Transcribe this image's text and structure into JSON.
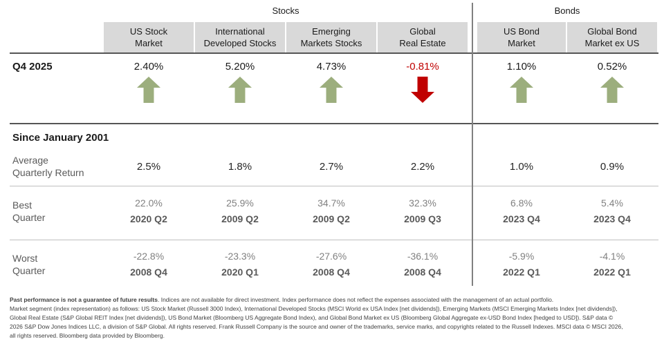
{
  "chart_data": {
    "type": "table",
    "title": "Quarterly and historical market returns",
    "column_groups": [
      {
        "label": "Stocks",
        "columns": 4
      },
      {
        "label": "Bonds",
        "columns": 2
      }
    ],
    "columns": [
      "US Stock Market",
      "International Developed Stocks",
      "Emerging Markets Stocks",
      "Global Real Estate",
      "US Bond Market",
      "Global Bond Market ex US"
    ],
    "rows": [
      {
        "label": "Q4 2025",
        "values_pct": [
          2.4,
          5.2,
          4.73,
          -0.81,
          1.1,
          0.52
        ],
        "directions": [
          "up",
          "up",
          "up",
          "down",
          "up",
          "up"
        ]
      },
      {
        "section": "Since January 2001"
      },
      {
        "label": "Average Quarterly Return",
        "values_pct": [
          2.5,
          1.8,
          2.7,
          2.2,
          1.0,
          0.9
        ]
      },
      {
        "label": "Best Quarter",
        "values_pct": [
          22.0,
          25.9,
          34.7,
          32.3,
          6.8,
          5.4
        ],
        "quarters": [
          "2020 Q2",
          "2009 Q2",
          "2009 Q2",
          "2009 Q3",
          "2023 Q4",
          "2023 Q4"
        ]
      },
      {
        "label": "Worst Quarter",
        "values_pct": [
          -22.8,
          -23.3,
          -27.6,
          -36.1,
          -5.9,
          -4.1
        ],
        "quarters": [
          "2008 Q4",
          "2020 Q1",
          "2008 Q4",
          "2008 Q4",
          "2022 Q1",
          "2022 Q1"
        ]
      }
    ]
  },
  "groups": {
    "stocks": "Stocks",
    "bonds": "Bonds"
  },
  "cols": [
    {
      "header_1": "US Stock",
      "header_2": "Market",
      "q4": "2.40%",
      "q4_dir": "up",
      "avg": "2.5%",
      "best_pct": "22.0%",
      "best_q": "2020 Q2",
      "worst_pct": "-22.8%",
      "worst_q": "2008 Q4"
    },
    {
      "header_1": "International",
      "header_2": "Developed Stocks",
      "q4": "5.20%",
      "q4_dir": "up",
      "avg": "1.8%",
      "best_pct": "25.9%",
      "best_q": "2009 Q2",
      "worst_pct": "-23.3%",
      "worst_q": "2020 Q1"
    },
    {
      "header_1": "Emerging",
      "header_2": "Markets Stocks",
      "q4": "4.73%",
      "q4_dir": "up",
      "avg": "2.7%",
      "best_pct": "34.7%",
      "best_q": "2009 Q2",
      "worst_pct": "-27.6%",
      "worst_q": "2008 Q4"
    },
    {
      "header_1": "Global",
      "header_2": "Real Estate",
      "q4": "-0.81%",
      "q4_dir": "down",
      "avg": "2.2%",
      "best_pct": "32.3%",
      "best_q": "2009 Q3",
      "worst_pct": "-36.1%",
      "worst_q": "2008 Q4"
    },
    {
      "header_1": "US Bond",
      "header_2": "Market",
      "q4": "1.10%",
      "q4_dir": "up",
      "avg": "1.0%",
      "best_pct": "6.8%",
      "best_q": "2023 Q4",
      "worst_pct": "-5.9%",
      "worst_q": "2022 Q1"
    },
    {
      "header_1": "Global Bond",
      "header_2": "Market ex US",
      "q4": "0.52%",
      "q4_dir": "up",
      "avg": "0.9%",
      "best_pct": "5.4%",
      "best_q": "2023 Q4",
      "worst_pct": "-4.1%",
      "worst_q": "2022 Q1"
    }
  ],
  "rows": {
    "q4": {
      "label": "Q4 2025"
    },
    "section_heading": "Since January 2001",
    "average": {
      "label_1": "Average",
      "label_2": "Quarterly Return"
    },
    "best": {
      "label_1": "Best",
      "label_2": "Quarter"
    },
    "worst": {
      "label_1": "Worst",
      "label_2": "Quarter"
    }
  },
  "footnote": {
    "lead_bold": "Past performance is not a guarantee of future results",
    "lead_rest": ". Indices are not available for direct investment. Index performance does not reflect the expenses associated with the management of an actual portfolio.",
    "lines": [
      "Market segment (index representation) as follows: US Stock Market (Russell 3000 Index), International Developed Stocks (MSCI World ex USA Index [net dividends]), Emerging Markets (MSCI Emerging Markets Index [net dividends]),",
      "Global Real Estate (S&P Global REIT Index [net dividends]), US Bond Market (Bloomberg US Aggregate Bond Index), and Global Bond Market ex US (Bloomberg Global Aggregate ex-USD Bond Index [hedged to USD]). S&P data ©",
      "2026 S&P Dow Jones Indices LLC, a division of S&P Global. All rights reserved. Frank Russell Company is the source and owner of the trademarks, service marks, and copyrights related to the Russell Indexes. MSCI data © MSCI 2026,",
      "all rights reserved. Bloomberg data provided by Bloomberg."
    ]
  },
  "colors": {
    "up": "#9cae7d",
    "down": "#c00000",
    "header_bg": "#d9d9d9",
    "thick_line": "#555555",
    "thin_line": "#bfbfbf",
    "divider": "#808080"
  }
}
